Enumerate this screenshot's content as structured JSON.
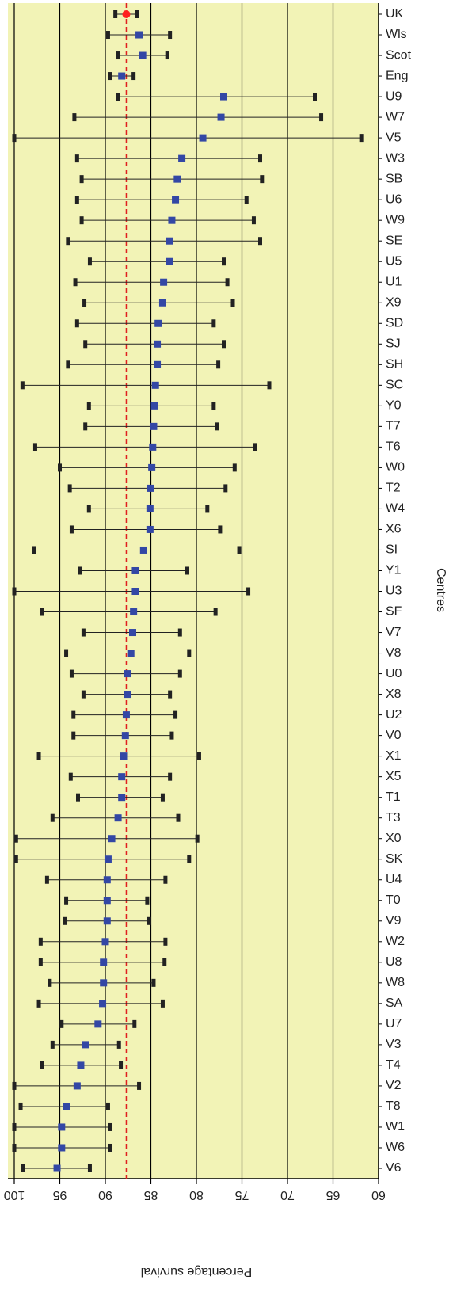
{
  "chart_data": {
    "type": "forest",
    "x_label": "Percentage survival",
    "y_label": "Centres",
    "categories": [
      "UK",
      "Wls",
      "Scot",
      "Eng",
      "U9",
      "W7",
      "V5",
      "W3",
      "SB",
      "U6",
      "W9",
      "SE",
      "U5",
      "U1",
      "X9",
      "SD",
      "SJ",
      "SH",
      "SC",
      "Y0",
      "T7",
      "T6",
      "W0",
      "T2",
      "W4",
      "X6",
      "SI",
      "Y1",
      "U3",
      "SF",
      "V7",
      "V8",
      "U0",
      "X8",
      "U2",
      "V0",
      "X1",
      "X5",
      "T1",
      "T3",
      "X0",
      "SK",
      "U4",
      "T0",
      "V9",
      "W2",
      "U8",
      "W8",
      "SA",
      "U7",
      "V3",
      "T4",
      "V2",
      "T8",
      "W1",
      "W6",
      "V6"
    ],
    "values": [
      87.7,
      86.3,
      85.9,
      88.2,
      77.0,
      77.3,
      79.3,
      81.6,
      82.1,
      82.3,
      82.7,
      83.0,
      83.0,
      83.6,
      83.7,
      84.2,
      84.3,
      84.3,
      84.5,
      84.6,
      84.7,
      84.8,
      84.9,
      85.0,
      85.1,
      85.1,
      85.8,
      86.7,
      86.7,
      86.9,
      87.0,
      87.2,
      87.6,
      87.6,
      87.7,
      87.8,
      88.0,
      88.2,
      88.2,
      88.6,
      89.3,
      89.7,
      89.8,
      89.8,
      89.8,
      90.0,
      90.2,
      90.2,
      90.3,
      90.8,
      92.2,
      92.7,
      93.1,
      94.3,
      94.8,
      94.8,
      95.3
    ],
    "upper": [
      88.9,
      89.7,
      88.6,
      89.5,
      88.6,
      93.4,
      100,
      93.1,
      92.6,
      93.1,
      92.6,
      94.1,
      91.7,
      93.3,
      92.3,
      93.1,
      92.2,
      94.1,
      99.1,
      91.8,
      92.2,
      97.7,
      95.0,
      93.9,
      91.8,
      93.7,
      97.8,
      92.8,
      100,
      97.0,
      92.4,
      94.3,
      93.7,
      92.4,
      93.5,
      93.5,
      97.3,
      93.8,
      93.0,
      95.8,
      99.8,
      99.8,
      96.4,
      94.3,
      94.4,
      97.1,
      97.1,
      96.1,
      97.3,
      94.8,
      95.8,
      97.0,
      100,
      99.3,
      100,
      100,
      99.0
    ],
    "lower": [
      86.5,
      82.9,
      83.2,
      86.9,
      67.0,
      66.3,
      61.9,
      73.0,
      72.8,
      74.5,
      73.7,
      73.0,
      77.0,
      76.6,
      76.0,
      78.1,
      77.0,
      77.6,
      72.0,
      78.1,
      77.7,
      73.6,
      75.8,
      76.8,
      78.8,
      77.4,
      75.3,
      81.0,
      74.3,
      77.9,
      81.8,
      80.8,
      81.8,
      82.9,
      82.3,
      82.7,
      79.7,
      82.9,
      83.7,
      82.0,
      79.9,
      80.8,
      83.4,
      85.4,
      85.2,
      83.4,
      83.5,
      84.7,
      83.7,
      86.8,
      88.5,
      88.3,
      86.3,
      89.7,
      89.5,
      89.5,
      91.7
    ],
    "color": "#3347a5",
    "highlight": {
      "index": 0,
      "color": "#ff2020"
    },
    "reference_line": {
      "value": 87.7,
      "color": "#e02020"
    },
    "background": "#f2f3b6",
    "xlim": [
      100,
      60
    ],
    "xticks": [
      100,
      95,
      90,
      85,
      80,
      75,
      70,
      65,
      60
    ],
    "grid": true
  }
}
